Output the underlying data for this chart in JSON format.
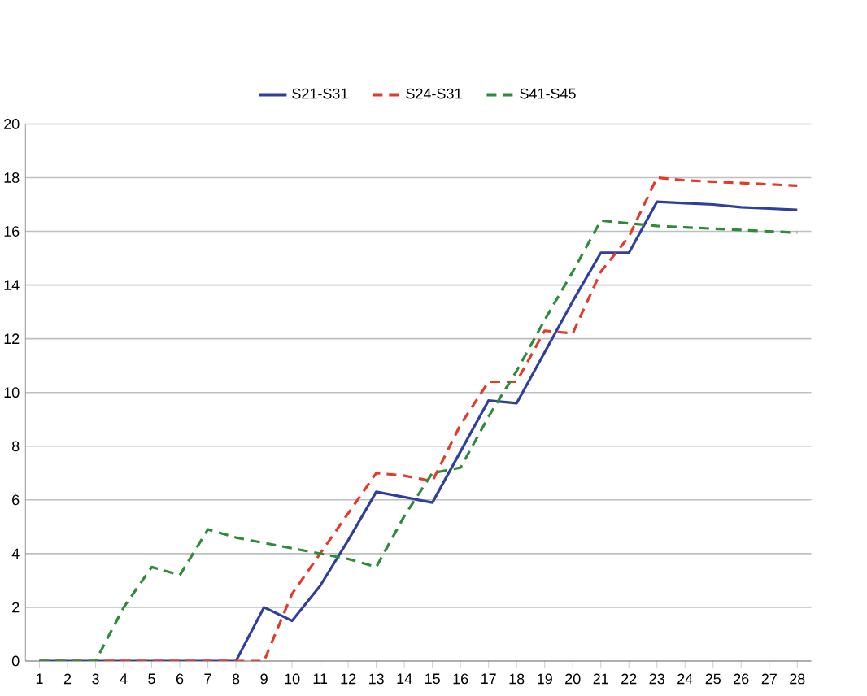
{
  "chart_data": {
    "type": "line",
    "categories": [
      "1",
      "2",
      "3",
      "4",
      "5",
      "6",
      "7",
      "8",
      "9",
      "10",
      "11",
      "12",
      "13",
      "14",
      "15",
      "16",
      "17",
      "18",
      "19",
      "20",
      "21",
      "22",
      "23",
      "24",
      "25",
      "26",
      "27",
      "28"
    ],
    "series": [
      {
        "name": "S21-S31",
        "color": "#2e3f9e",
        "line_style": "solid",
        "values": [
          0,
          0,
          0,
          0,
          0,
          0,
          0,
          0,
          2,
          1.5,
          2.8,
          4.5,
          6.3,
          6.1,
          5.9,
          7.8,
          9.7,
          9.6,
          11.5,
          13.4,
          15.2,
          15.2,
          17.1,
          17.05,
          17,
          16.9,
          16.85,
          16.8
        ]
      },
      {
        "name": "S24-S31",
        "color": "#e53a2a",
        "line_style": "dashed",
        "values": [
          0,
          0,
          0,
          0,
          0,
          0,
          0,
          0,
          0,
          2.5,
          4,
          5.5,
          7,
          6.9,
          6.7,
          8.8,
          10.4,
          10.4,
          12.3,
          12.2,
          14.5,
          15.8,
          18,
          17.9,
          17.85,
          17.8,
          17.75,
          17.7
        ]
      },
      {
        "name": "S41-S45",
        "color": "#2e8b3a",
        "line_style": "dashed",
        "values": [
          0,
          0,
          0,
          2,
          3.5,
          3.2,
          4.9,
          4.6,
          4.4,
          4.2,
          4,
          3.8,
          3.5,
          5.4,
          7,
          7.2,
          9.1,
          10.8,
          12.7,
          14.5,
          16.4,
          16.3,
          16.2,
          16.15,
          16.1,
          16.05,
          16,
          15.95
        ]
      }
    ],
    "ylim": [
      0,
      20
    ],
    "yticks": [
      0,
      2,
      4,
      6,
      8,
      10,
      12,
      14,
      16,
      18,
      20
    ],
    "grid": "y",
    "legend": "top",
    "marker": "none"
  }
}
